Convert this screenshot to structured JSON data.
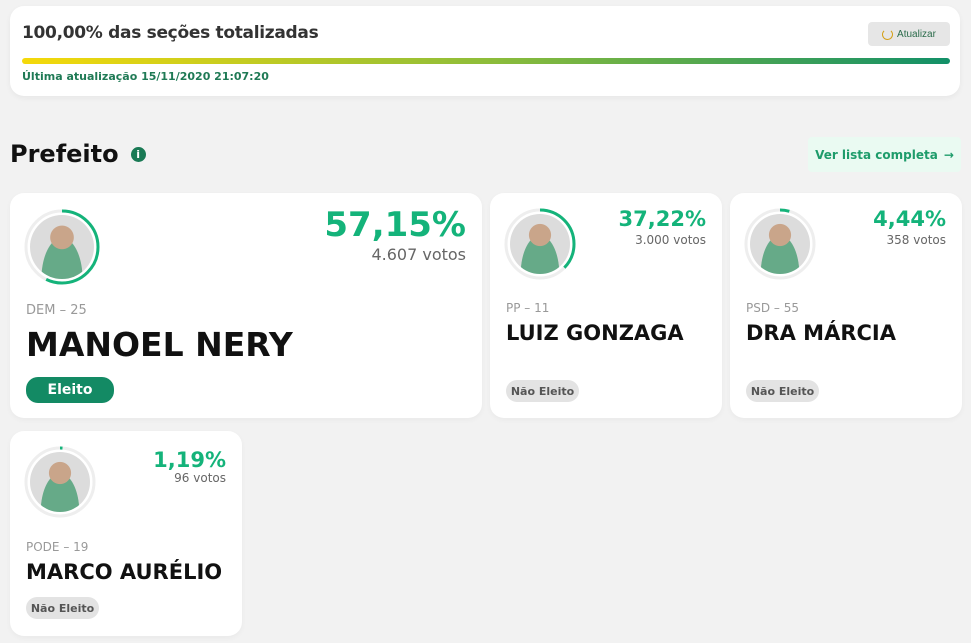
{
  "summary": {
    "title": "100,00% das seções totalizadas",
    "refresh_label": "Atualizar",
    "progress_percent": 100,
    "last_update": "Última atualização 15/11/2020 21:07:20"
  },
  "section": {
    "title": "Prefeito",
    "info_icon": "info-icon",
    "more_label": "Ver lista completa",
    "more_icon": "arrow-right-icon"
  },
  "colors": {
    "accent": "#14b37a",
    "elected": "#138a64"
  },
  "candidates": [
    {
      "party": "DEM – 25",
      "name": "MANOEL NERY",
      "percent": "57,15%",
      "percent_value": 57.15,
      "votes": "4.607 votos",
      "status": "Eleito"
    },
    {
      "party": "PP – 11",
      "name": "LUIZ GONZAGA",
      "percent": "37,22%",
      "percent_value": 37.22,
      "votes": "3.000 votos",
      "status": "Não Eleito"
    },
    {
      "party": "PSD – 55",
      "name": "DRA MÁRCIA",
      "percent": "4,44%",
      "percent_value": 4.44,
      "votes": "358 votos",
      "status": "Não Eleito"
    },
    {
      "party": "PODE – 19",
      "name": "MARCO AURÉLIO",
      "percent": "1,19%",
      "percent_value": 1.19,
      "votes": "96 votos",
      "status": "Não Eleito"
    }
  ]
}
